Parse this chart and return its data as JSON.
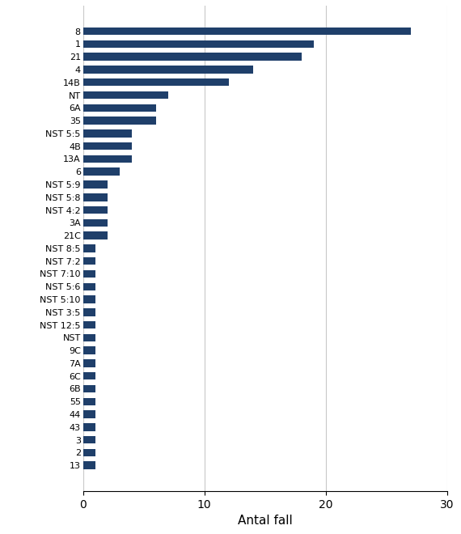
{
  "categories": [
    "8",
    "1",
    "21",
    "4",
    "14B",
    "NT",
    "6A",
    "35",
    "NST 5:5",
    "4B",
    "13A",
    "6",
    "NST 5:9",
    "NST 5:8",
    "NST 4:2",
    "3A",
    "21C",
    "NST 8:5",
    "NST 7:2",
    "NST 7:10",
    "NST 5:6",
    "NST 5:10",
    "NST 3:5",
    "NST 12:5",
    "NST",
    "9C",
    "7A",
    "6C",
    "6B",
    "55",
    "44",
    "43",
    "3",
    "2",
    "13"
  ],
  "values": [
    27,
    19,
    18,
    14,
    12,
    7,
    6,
    6,
    4,
    4,
    4,
    3,
    2,
    2,
    2,
    2,
    2,
    1,
    1,
    1,
    1,
    1,
    1,
    1,
    1,
    1,
    1,
    1,
    1,
    1,
    1,
    1,
    1,
    1,
    1
  ],
  "bar_color": "#1F3F6A",
  "xlabel": "Antal fall",
  "xlim": [
    0,
    30
  ],
  "xticks": [
    0,
    10,
    20,
    30
  ],
  "background_color": "#ffffff",
  "grid_color": "#c8c8c8",
  "label_fontsize": 8.0,
  "xlabel_fontsize": 11
}
